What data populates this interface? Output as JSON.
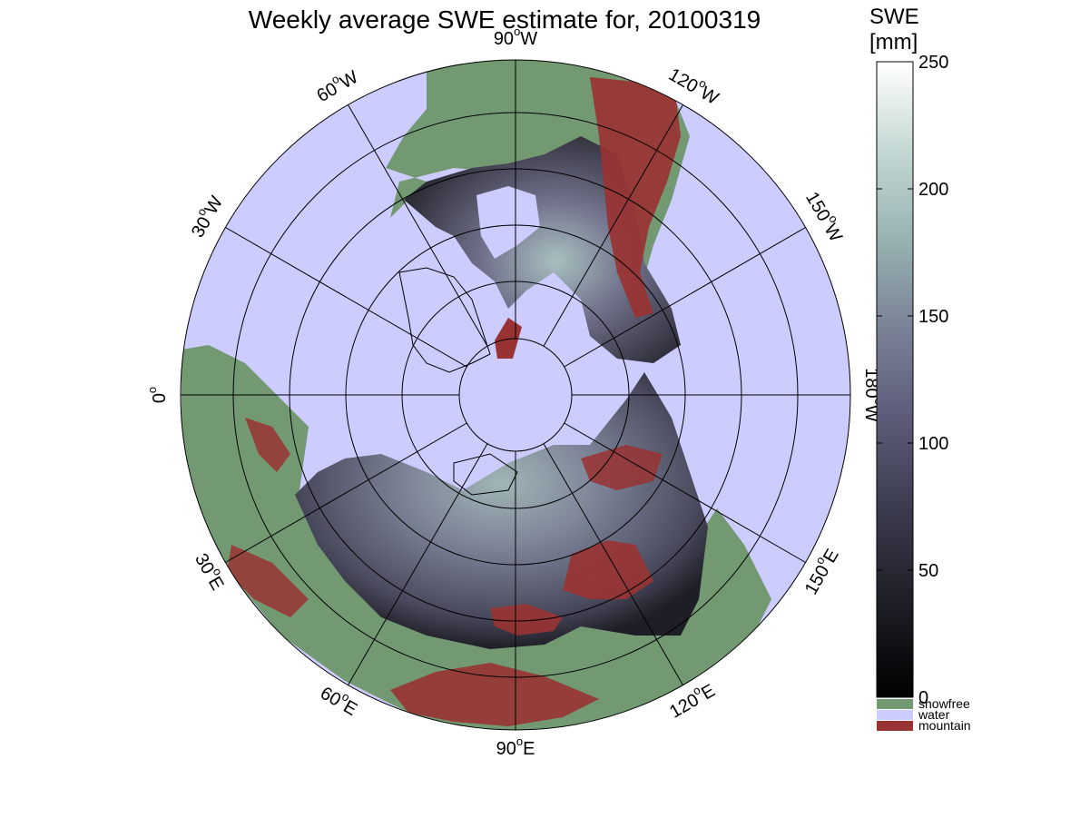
{
  "title": "Weekly average SWE estimate for, 20100319",
  "longitude_labels": [
    {
      "text": "90",
      "unit": "W",
      "angle_deg": 90
    },
    {
      "text": "120",
      "unit": "W",
      "angle_deg": 60
    },
    {
      "text": "150",
      "unit": "W",
      "angle_deg": 30
    },
    {
      "text": "180",
      "unit": "W",
      "angle_deg": 0
    },
    {
      "text": "150",
      "unit": "E",
      "angle_deg": -30
    },
    {
      "text": "120",
      "unit": "E",
      "angle_deg": -60
    },
    {
      "text": "90",
      "unit": "E",
      "angle_deg": -90
    },
    {
      "text": "60",
      "unit": "E",
      "angle_deg": -120
    },
    {
      "text": "30",
      "unit": "E",
      "angle_deg": -150
    },
    {
      "text": "0",
      "unit": "",
      "angle_deg": 180
    },
    {
      "text": "30",
      "unit": "W",
      "angle_deg": 150
    },
    {
      "text": "60",
      "unit": "W",
      "angle_deg": 120
    }
  ],
  "colorbar": {
    "title_line1": "SWE",
    "title_line2": "[mm]",
    "min": 0,
    "max": 250,
    "ticks": [
      "0",
      "50",
      "100",
      "150",
      "200",
      "250"
    ],
    "tick_values": [
      0,
      50,
      100,
      150,
      200,
      250
    ],
    "gradient_stops": [
      "#000000",
      "#1c1c24",
      "#3c3c50",
      "#5e5e7a",
      "#7a8296",
      "#98b2b2",
      "#c4d8d4",
      "#ffffff"
    ]
  },
  "legend": [
    {
      "label": "snowfree",
      "color": "#739973"
    },
    {
      "label": "water",
      "color": "#ccccff"
    },
    {
      "label": "mountain",
      "color": "#993333"
    }
  ],
  "colors": {
    "water": "#ccccff",
    "snowfree": "#739973",
    "mountain": "#993333",
    "snow_low": "#1a1a22",
    "snow_mid": "#6e6e88",
    "snow_high": "#b8d0cc"
  }
}
